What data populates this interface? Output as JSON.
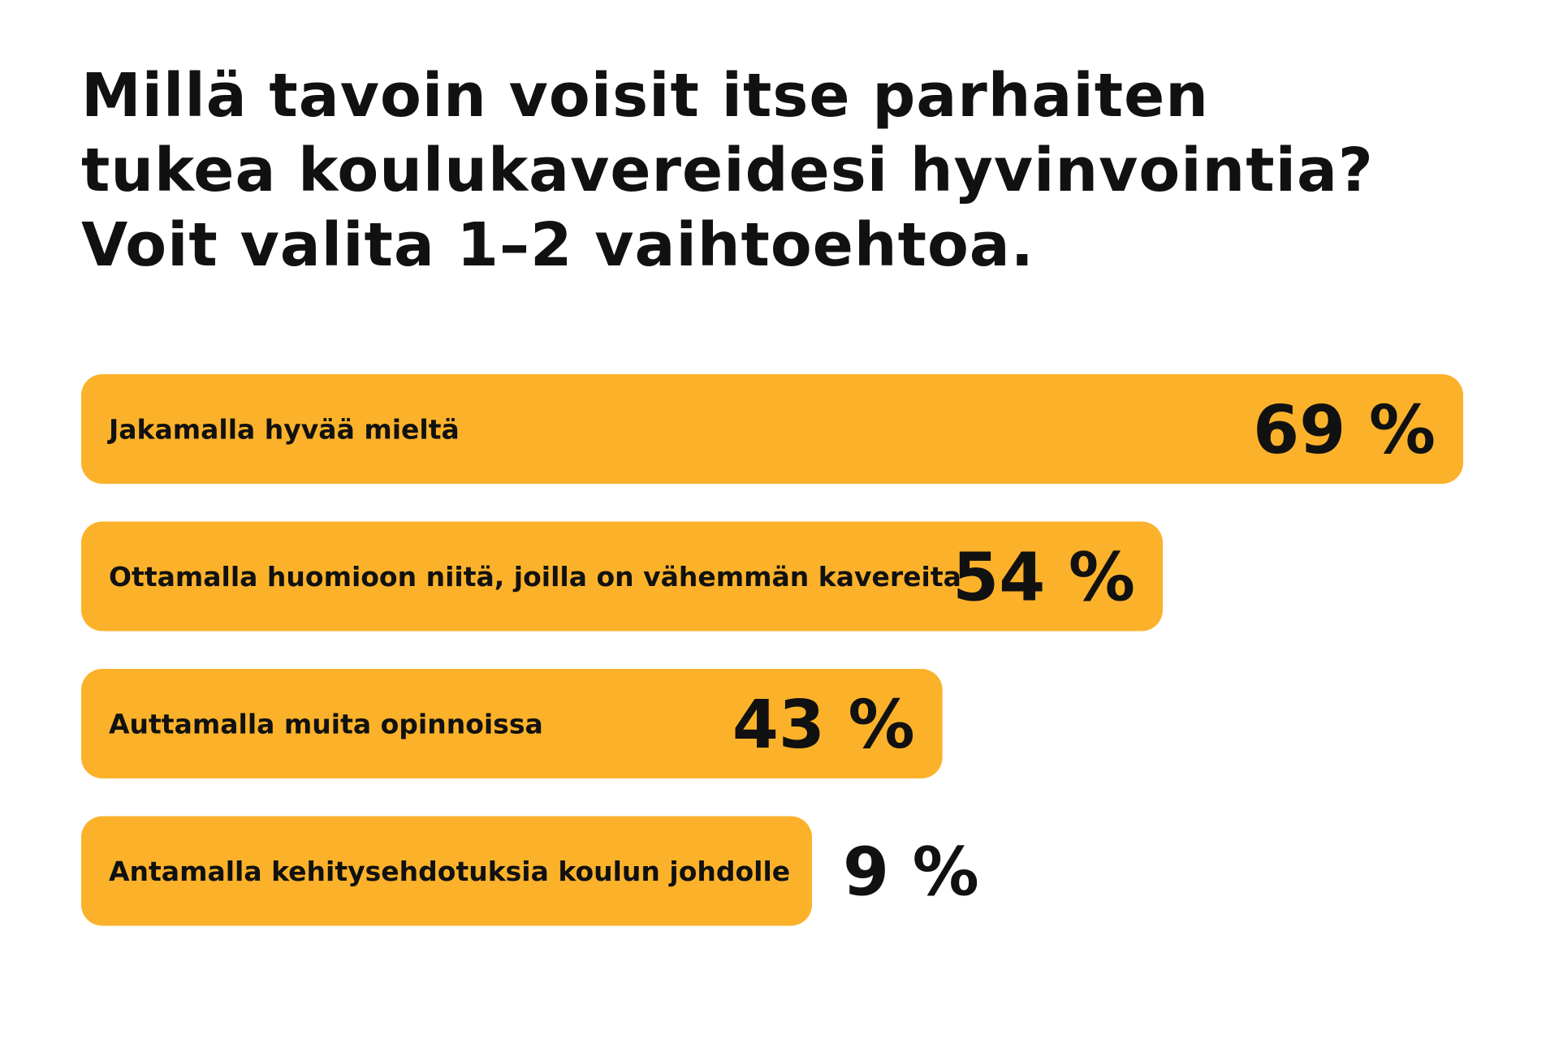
{
  "title_lines": [
    "Millä tavoin voisit itse parhaiten",
    "tukea koulukavereidesi hyvinvointia?",
    "Voit valita 1–2 vaihtoehtoa."
  ],
  "chart_data": {
    "type": "bar",
    "orientation": "horizontal",
    "categories": [
      "Jakamalla hyvää mieltä",
      "Ottamalla huomioon niitä, joilla on vähemmän kavereita",
      "Auttamalla muita opinnoissa",
      "Antamalla kehitysehdotuksia koulun johdolle"
    ],
    "values": [
      69,
      54,
      43,
      9
    ],
    "value_labels": [
      "69 %",
      "54 %",
      "43 %",
      "9 %"
    ],
    "unit": "%",
    "grid": false,
    "legend": "none",
    "bar_color": "#FBB22A",
    "text_color": "#111111"
  }
}
